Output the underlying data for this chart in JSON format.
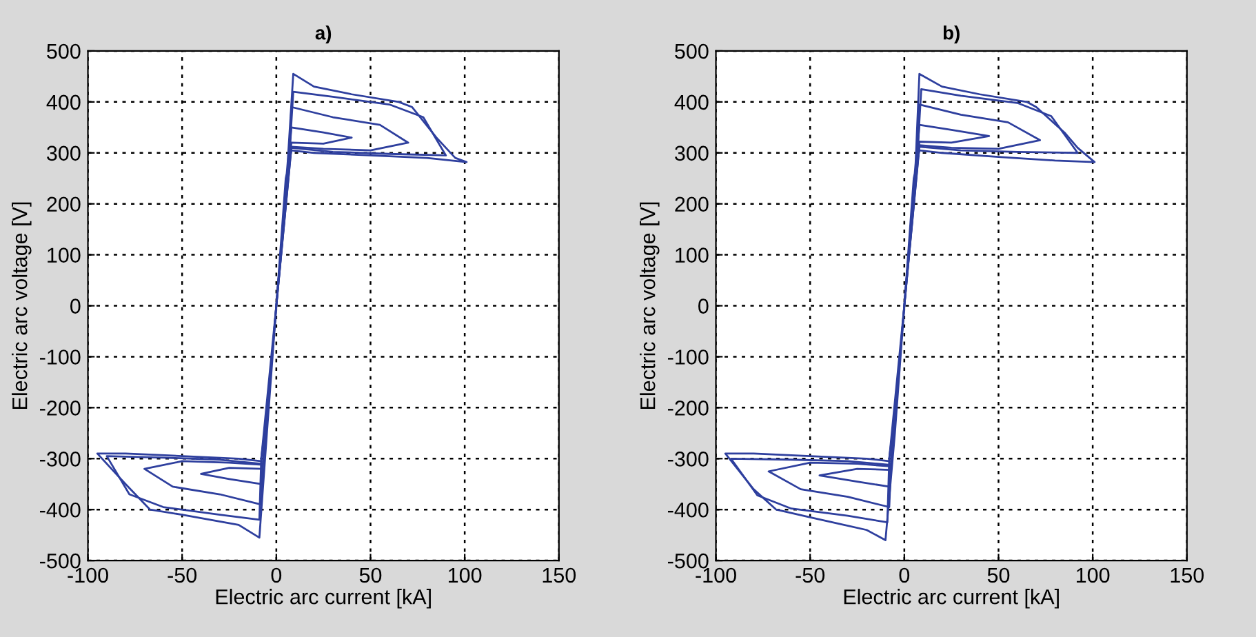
{
  "chart_data": [
    {
      "type": "line",
      "title": "a)",
      "xlabel": "Electric arc current [kA]",
      "ylabel": "Electric arc voltage [V]",
      "xlim": [
        -100,
        150
      ],
      "xticks": [
        -100,
        -50,
        0,
        50,
        100,
        150
      ],
      "ylim": [
        -500,
        500
      ],
      "yticks": [
        -500,
        -400,
        -300,
        -200,
        -100,
        0,
        100,
        200,
        300,
        400,
        500
      ],
      "grid": true,
      "series": [
        {
          "color": "#2e3f9e",
          "x": [
            -8,
            -3,
            0,
            3,
            6,
            9,
            20,
            40,
            65,
            72,
            85,
            95,
            101,
            80,
            50,
            20,
            8,
            5,
            2,
            0,
            -2,
            -5,
            -9,
            -20,
            -50,
            -67,
            -80,
            -95,
            -80,
            -50,
            -20,
            -8
          ],
          "values": [
            -300,
            -150,
            0,
            150,
            280,
            455,
            430,
            415,
            400,
            390,
            330,
            290,
            282,
            290,
            295,
            300,
            305,
            250,
            100,
            0,
            -100,
            -250,
            -455,
            -430,
            -410,
            -400,
            -350,
            -290,
            -290,
            -295,
            -300,
            -305
          ]
        },
        {
          "color": "#2e3f9e",
          "x": [
            -8,
            0,
            7,
            9,
            30,
            60,
            78,
            90,
            60,
            30,
            8,
            0,
            -8,
            -9,
            -30,
            -60,
            -78,
            -90,
            -60,
            -30,
            -8
          ],
          "values": [
            -300,
            0,
            300,
            420,
            410,
            395,
            370,
            295,
            298,
            302,
            310,
            0,
            -300,
            -420,
            -410,
            -395,
            -370,
            -295,
            -298,
            -302,
            -310
          ]
        },
        {
          "color": "#2e3f9e",
          "x": [
            -7,
            0,
            7,
            8,
            30,
            55,
            70,
            50,
            25,
            8,
            0,
            -7,
            -8,
            -30,
            -55,
            -70,
            -50,
            -25,
            -8
          ],
          "values": [
            -305,
            0,
            305,
            390,
            370,
            355,
            320,
            305,
            308,
            312,
            0,
            -305,
            -390,
            -370,
            -355,
            -320,
            -305,
            -308,
            -312
          ]
        },
        {
          "color": "#2e3f9e",
          "x": [
            -7,
            0,
            7,
            8,
            25,
            40,
            25,
            8,
            0,
            -7,
            -8,
            -25,
            -40,
            -25,
            -8
          ],
          "values": [
            -305,
            0,
            305,
            350,
            340,
            330,
            318,
            320,
            0,
            -305,
            -350,
            -340,
            -330,
            -318,
            -320
          ]
        }
      ]
    },
    {
      "type": "line",
      "title": "b)",
      "xlabel": "Electric arc current [kA]",
      "ylabel": "Electric arc voltage [V]",
      "xlim": [
        -100,
        150
      ],
      "xticks": [
        -100,
        -50,
        0,
        50,
        100,
        150
      ],
      "ylim": [
        -500,
        500
      ],
      "yticks": [
        -500,
        -400,
        -300,
        -200,
        -100,
        0,
        100,
        200,
        300,
        400,
        500
      ],
      "grid": true,
      "series": [
        {
          "color": "#2e3f9e",
          "x": [
            -8,
            -3,
            0,
            3,
            6,
            8,
            20,
            40,
            65,
            70,
            85,
            92,
            101,
            80,
            50,
            20,
            8,
            5,
            2,
            0,
            -2,
            -5,
            -10,
            -20,
            -50,
            -68,
            -80,
            -95,
            -80,
            -50,
            -20,
            -8
          ],
          "values": [
            -300,
            -150,
            0,
            150,
            280,
            455,
            430,
            415,
            400,
            390,
            340,
            310,
            282,
            285,
            292,
            300,
            305,
            250,
            100,
            0,
            -100,
            -250,
            -460,
            -440,
            -415,
            -400,
            -360,
            -290,
            -290,
            -295,
            -300,
            -305
          ]
        },
        {
          "color": "#2e3f9e",
          "x": [
            -8,
            0,
            7,
            9,
            30,
            60,
            78,
            92,
            60,
            30,
            8,
            0,
            -8,
            -9,
            -30,
            -60,
            -78,
            -92,
            -60,
            -30,
            -8
          ],
          "values": [
            -300,
            0,
            300,
            425,
            412,
            398,
            372,
            300,
            302,
            305,
            312,
            0,
            -300,
            -425,
            -412,
            -398,
            -372,
            -300,
            -302,
            -305,
            -312
          ]
        },
        {
          "color": "#2e3f9e",
          "x": [
            -7,
            0,
            7,
            8,
            30,
            55,
            72,
            50,
            25,
            8,
            0,
            -7,
            -8,
            -30,
            -55,
            -72,
            -50,
            -25,
            -8
          ],
          "values": [
            -305,
            0,
            305,
            395,
            375,
            360,
            325,
            308,
            310,
            315,
            0,
            -305,
            -395,
            -375,
            -360,
            -325,
            -308,
            -310,
            -315
          ]
        },
        {
          "color": "#2e3f9e",
          "x": [
            -7,
            0,
            7,
            8,
            25,
            45,
            25,
            8,
            0,
            -7,
            -8,
            -25,
            -45,
            -25,
            -8
          ],
          "values": [
            -305,
            0,
            305,
            355,
            345,
            333,
            320,
            322,
            0,
            -305,
            -355,
            -345,
            -333,
            -320,
            -322
          ]
        }
      ]
    }
  ]
}
